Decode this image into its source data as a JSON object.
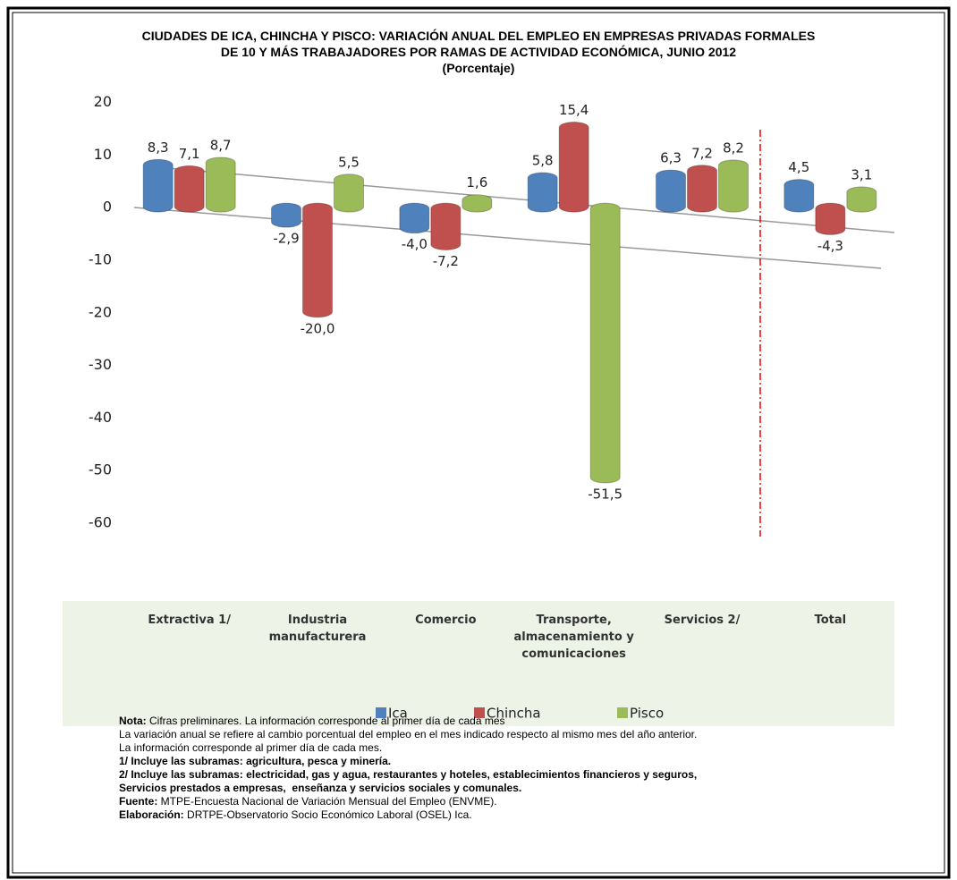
{
  "chart_data": {
    "type": "bar",
    "title": [
      "CIUDADES DE ICA, CHINCHA Y PISCO: VARIACIÓN ANUAL DEL EMPLEO EN EMPRESAS PRIVADAS FORMALES",
      "DE 10 Y MÁS TRABAJADORES POR RAMAS DE ACTIVIDAD ECONÓMICA, JUNIO 2012"
    ],
    "subtitle": "(Porcentaje)",
    "categories": [
      "Extractiva 1/",
      "Industria manufacturera",
      "Comercio",
      "Transporte, almacenamiento y comunicaciones",
      "Servicios 2/",
      "Total"
    ],
    "series": [
      {
        "name": "Ica",
        "color": "#4f81bd",
        "values": [
          8.3,
          -2.9,
          -4.0,
          5.8,
          6.3,
          4.5
        ],
        "value_labels": [
          "8,3",
          "-2,9",
          "-4,0",
          "5,8",
          "6,3",
          "4,5"
        ]
      },
      {
        "name": "Chincha",
        "color": "#c0504d",
        "values": [
          7.1,
          -20.0,
          -7.2,
          15.4,
          7.2,
          -4.3
        ],
        "value_labels": [
          "7,1",
          "-20,0",
          "-7,2",
          "15,4",
          "7,2",
          "-4,3"
        ]
      },
      {
        "name": "Pisco",
        "color": "#9bbb59",
        "values": [
          8.7,
          5.5,
          1.6,
          -51.5,
          8.2,
          3.1
        ],
        "value_labels": [
          "8,7",
          "5,5",
          "1,6",
          "-51,5",
          "8,2",
          "3,1"
        ]
      }
    ],
    "ylim": [
      -60,
      20
    ],
    "yticks": [
      -60,
      -50,
      -40,
      -30,
      -20,
      -10,
      0,
      10,
      20
    ]
  },
  "notes": [
    {
      "bold": "Nota:",
      "text": " Cifras preliminares. La información corresponde al primer día de cada mes"
    },
    {
      "text": "La variación anual se refiere al cambio porcentual del empleo en el mes indicado respecto al mismo mes del año anterior."
    },
    {
      "text": "La información corresponde al primer día de cada mes."
    },
    {
      "bold": "1/ Incluye las subramas: agricultura, pesca y minería."
    },
    {
      "bold": "2/ Incluye las subramas: electricidad, gas y agua, restaurantes y hoteles, establecimientos financieros y seguros,"
    },
    {
      "bold": "Servicios prestados a empresas,  enseñanza y servicios sociales y comunales."
    },
    {
      "bold": "Fuente:",
      "text": " MTPE-Encuesta Nacional de Variación Mensual del Empleo (ENVME)."
    },
    {
      "bold": "Elaboración:",
      "text": " DRTPE-Observatorio Socio Económico Laboral (OSEL) Ica."
    }
  ]
}
